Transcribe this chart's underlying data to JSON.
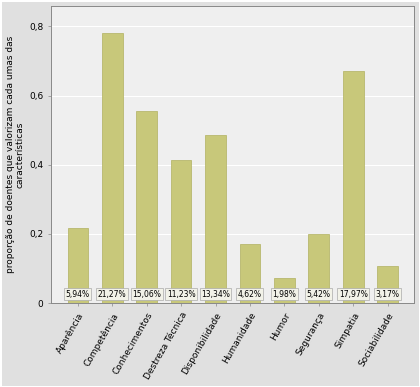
{
  "categories": [
    "Aparência",
    "Competência",
    "Conhecimentos",
    "Destreza Técnica",
    "Disponibilidade",
    "Humanidade",
    "Humor",
    "Segurança",
    "Simpatia",
    "Sociabilidade"
  ],
  "values": [
    0.2175,
    0.78,
    0.554,
    0.413,
    0.487,
    0.172,
    0.072,
    0.2,
    0.67,
    0.108
  ],
  "labels": [
    "5,94%",
    "21,27%",
    "15,06%",
    "11,23%",
    "13,34%",
    "4,62%",
    "1,98%",
    "5,42%",
    "17,97%",
    "3,17%"
  ],
  "bar_color": "#c8c87a",
  "bar_edge_color": "#b0b060",
  "background_color": "#e0e0e0",
  "plot_bg_color": "#efefef",
  "ylabel": "proporção de doentes que valorizam cada umas das\ncaracterísticas",
  "ylim": [
    0,
    0.86
  ],
  "yticks": [
    0,
    0.2,
    0.4,
    0.6,
    0.8
  ],
  "ytick_labels": [
    "0",
    "0,2",
    "0,4",
    "0,6",
    "0,8"
  ],
  "label_box_facecolor": "#f2f2e8",
  "label_box_edgecolor": "#aaaaaa",
  "label_fontsize": 5.5,
  "ylabel_fontsize": 6.5,
  "tick_fontsize": 6.5,
  "bar_width": 0.6
}
